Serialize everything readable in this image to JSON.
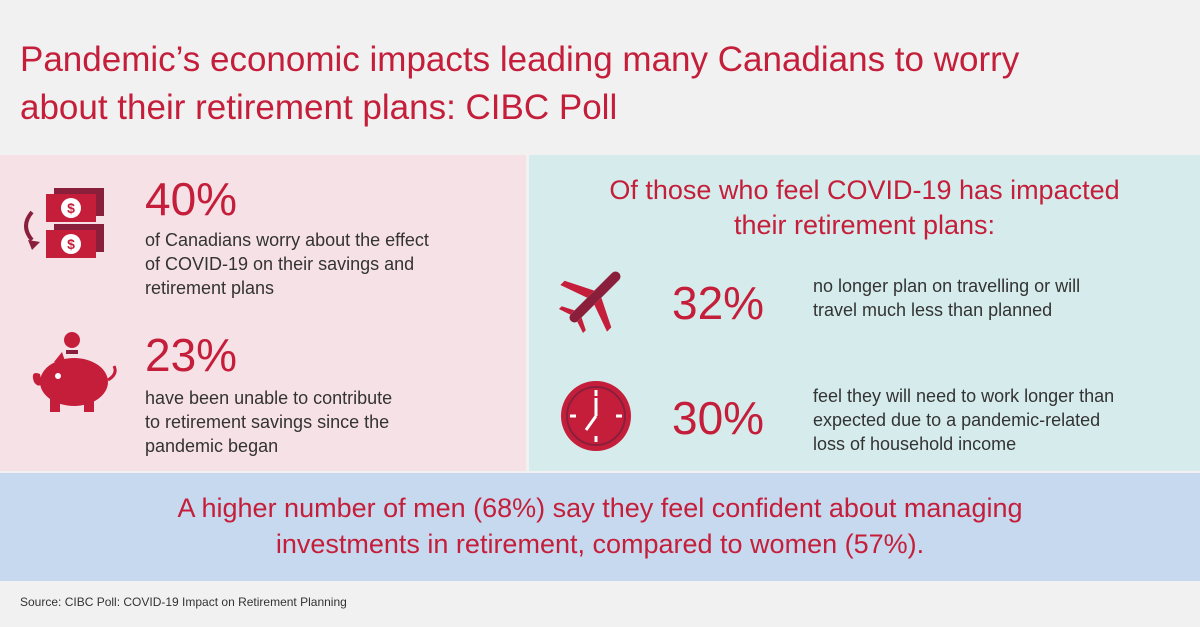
{
  "title_line1": "Pandemic’s economic impacts leading many Canadians to worry",
  "title_line2": "about their retirement plans: CIBC Poll",
  "left": {
    "stat1": {
      "value": "40%",
      "line1": "of Canadians worry about the effect",
      "line2": "of COVID-19 on their savings and",
      "line3": "retirement plans",
      "icon": "money-icon"
    },
    "stat2": {
      "value": "23%",
      "line1": "have been unable to contribute",
      "line2": "to retirement savings since the",
      "line3": "pandemic began",
      "icon": "piggy-bank-icon"
    }
  },
  "right": {
    "heading_line1": "Of those who feel COVID-19 has impacted",
    "heading_line2": "their retirement plans:",
    "stat1": {
      "value": "32%",
      "line1": "no longer plan on travelling or will",
      "line2": "travel much less than planned",
      "icon": "airplane-icon"
    },
    "stat2": {
      "value": "30%",
      "line1": "feel they will need to work longer than",
      "line2": "expected due to a pandemic-related",
      "line3": "loss of household income",
      "icon": "clock-icon"
    }
  },
  "bottom_line1": "A higher number of men (68%) say they feel confident about managing",
  "bottom_line2": "investments in retirement, compared to women (57%).",
  "source": "Source: CIBC Poll: COVID-19 Impact on Retirement Planning",
  "colors": {
    "accent": "#c41e3a",
    "dark_accent": "#8a1f3c",
    "left_bg": "#f6e1e6",
    "right_bg": "#d6ecec",
    "bottom_bg": "#c7d9ee"
  }
}
